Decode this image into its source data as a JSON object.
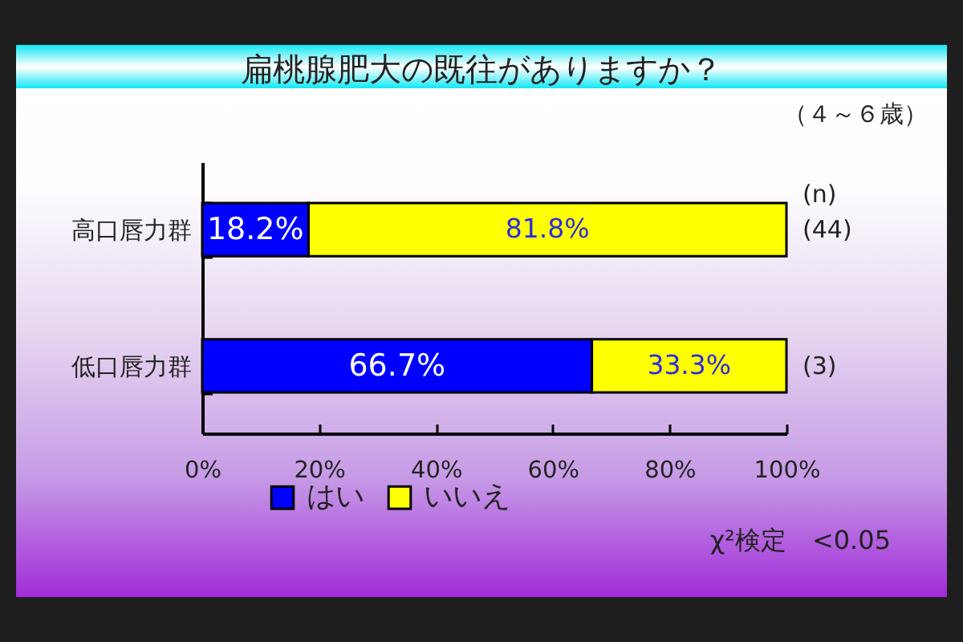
{
  "chart_data": {
    "type": "bar",
    "orientation": "horizontal",
    "stacked": true,
    "title": "扁桃腺肥大の既往がありますか？",
    "subtitle": "（４～６歳）",
    "categories": [
      "高口唇力群",
      "低口唇力群"
    ],
    "series": [
      {
        "name": "はい",
        "color": "#0000ff",
        "values": [
          18.2,
          66.7
        ],
        "value_labels": [
          "18.2%",
          "66.7%"
        ]
      },
      {
        "name": "いいえ",
        "color": "#ffff00",
        "values": [
          81.8,
          33.3
        ],
        "value_labels": [
          "81.8%",
          "33.3%"
        ]
      }
    ],
    "xlim": [
      0,
      100
    ],
    "xticks": [
      {
        "value": 0,
        "label": "0%"
      },
      {
        "value": 20,
        "label": "20%"
      },
      {
        "value": 40,
        "label": "40%"
      },
      {
        "value": 60,
        "label": "60%"
      },
      {
        "value": 80,
        "label": "80%"
      },
      {
        "value": 100,
        "label": "100%"
      }
    ],
    "legend": "bottom",
    "annotations": [
      "(n)",
      "(44)",
      "(3)",
      "χ²検定　<0.05"
    ]
  }
}
